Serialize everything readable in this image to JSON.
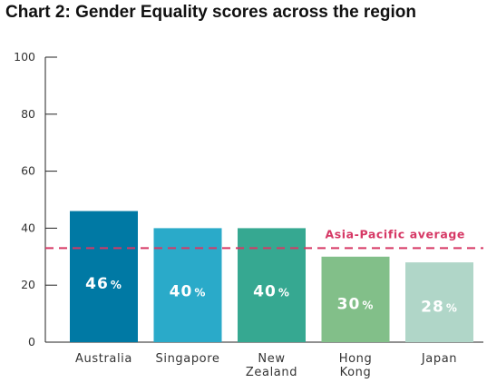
{
  "chart_data": {
    "type": "bar",
    "title": "Chart 2: Gender Equality scores across the region",
    "categories": [
      [
        "Australia"
      ],
      [
        "Singapore"
      ],
      [
        "New",
        "Zealand"
      ],
      [
        "Hong",
        "Kong"
      ],
      [
        "Japan"
      ]
    ],
    "values": [
      46,
      40,
      40,
      30,
      28
    ],
    "value_suffix": "%",
    "bar_colors": [
      "#0079a4",
      "#2aaac9",
      "#36a891",
      "#82bf89",
      "#b0d6c8"
    ],
    "ylim": [
      0,
      100
    ],
    "yticks": [
      0,
      20,
      40,
      60,
      80,
      100
    ],
    "xlabel": "",
    "ylabel": "",
    "grid": false,
    "reference_line": {
      "label": "Asia-Pacific average",
      "value": 33,
      "color": "#d63865",
      "style": "dashed"
    }
  }
}
